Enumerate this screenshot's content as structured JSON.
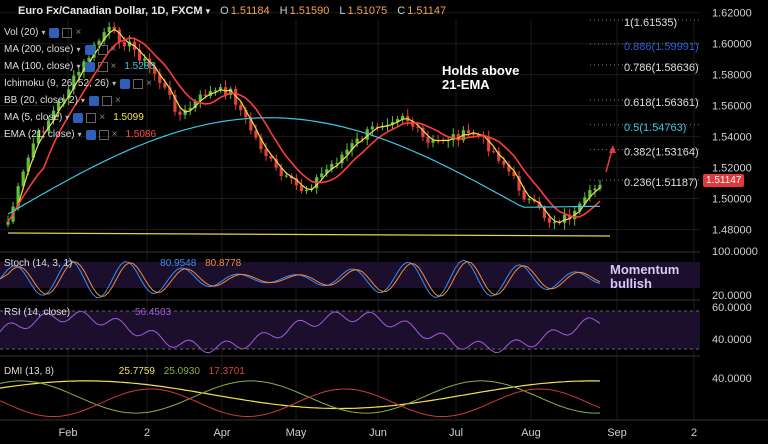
{
  "header": {
    "symbol": "Euro Fx/Canadian Dollar, 1D, FXCM",
    "open_label": "O",
    "open": "1.51184",
    "high_label": "H",
    "high": "1.51590",
    "low_label": "L",
    "low": "1.51075",
    "close_label": "C",
    "close": "1.51147"
  },
  "indicators": [
    {
      "label": "Vol (20)",
      "value": "",
      "color": "#dddddd"
    },
    {
      "label": "MA (200, close)",
      "value": "",
      "color": "#dddddd"
    },
    {
      "label": "MA (100, close)",
      "value": "1.5283",
      "color": "#3ec6e0"
    },
    {
      "label": "Ichimoku (9, 26, 52, 26)",
      "value": "",
      "color": "#dddddd"
    },
    {
      "label": "BB (20, close, 2)",
      "value": "",
      "color": "#dddddd"
    },
    {
      "label": "MA (5, close)",
      "value": "1.5099",
      "color": "#f2e14a"
    },
    {
      "label": "EMA (21, close)",
      "value": "1.5086",
      "color": "#ff4a4a"
    }
  ],
  "annotations": {
    "holds_line1": "Holds above",
    "holds_line2": "21-EMA",
    "momentum_line1": "Momentum",
    "momentum_line2": "bullish"
  },
  "fib_levels": [
    {
      "label": "1(1.61535)",
      "price": 1.61535,
      "color": "#dddddd"
    },
    {
      "label": "0.886(1.59991)",
      "price": 1.59991,
      "color": "#2f5fd0"
    },
    {
      "label": "0.786(1.58636)",
      "price": 1.58636,
      "color": "#dddddd"
    },
    {
      "label": "0.618(1.56361)",
      "price": 1.56361,
      "color": "#dddddd"
    },
    {
      "label": "0.5(1.54763)",
      "price": 1.54763,
      "color": "#3ec6e0"
    },
    {
      "label": "0.382(1.53164)",
      "price": 1.53164,
      "color": "#dddddd"
    },
    {
      "label": "0.236(1.51187)",
      "price": 1.51187,
      "color": "#dddddd"
    }
  ],
  "price_axis": {
    "ticks": [
      "1.62000",
      "1.60000",
      "1.58000",
      "1.56000",
      "1.54000",
      "1.52000",
      "1.50000",
      "1.48000"
    ],
    "last_price": "1.51147",
    "last_price_color": "#e23a3a"
  },
  "panels": {
    "stoch": {
      "label": "Stoch (14, 3, 1)",
      "v1": "80.9548",
      "v2": "80.8778",
      "axis_ticks": [
        "100.0000",
        "20.0000"
      ]
    },
    "rsi": {
      "label": "RSI (14, close)",
      "v1": "56.4503",
      "axis_ticks": [
        "60.0000",
        "40.0000"
      ]
    },
    "dmi": {
      "label": "DMI (13, 8)",
      "v1": "25.7759",
      "v2": "25.0930",
      "v3": "17.3701",
      "axis_ticks": [
        "40.0000"
      ]
    }
  },
  "time_axis": [
    "Feb",
    "2",
    "Apr",
    "May",
    "Jun",
    "Jul",
    "Aug",
    "Sep",
    "2"
  ],
  "chart_data": {
    "type": "candlestick",
    "title": "Euro Fx/Canadian Dollar, 1D, FXCM",
    "ylim": [
      1.47,
      1.625
    ],
    "x": [
      "Feb",
      "2",
      "Apr",
      "May",
      "Jun",
      "Jul",
      "Aug",
      "Sep",
      "2"
    ],
    "close_path": [
      [
        "Jan",
        1.485
      ],
      [
        "Feb",
        1.535
      ],
      [
        "Feb",
        1.56
      ],
      [
        "Mar",
        1.585
      ],
      [
        "Mar",
        1.61
      ],
      [
        "Mar",
        1.598
      ],
      [
        "Apr",
        1.58
      ],
      [
        "Apr",
        1.553
      ],
      [
        "Apr",
        1.568
      ],
      [
        "Apr",
        1.57
      ],
      [
        "May",
        1.54
      ],
      [
        "May",
        1.515
      ],
      [
        "May",
        1.505
      ],
      [
        "Jun",
        1.52
      ],
      [
        "Jun",
        1.535
      ],
      [
        "Jun",
        1.548
      ],
      [
        "Jun",
        1.555
      ],
      [
        "Jul",
        1.535
      ],
      [
        "Jul",
        1.54
      ],
      [
        "Jul",
        1.542
      ],
      [
        "Jul",
        1.525
      ],
      [
        "Aug",
        1.5
      ],
      [
        "Aug",
        1.485
      ],
      [
        "Aug",
        1.49
      ],
      [
        "Aug",
        1.511
      ]
    ],
    "last_close": 1.51147
  }
}
